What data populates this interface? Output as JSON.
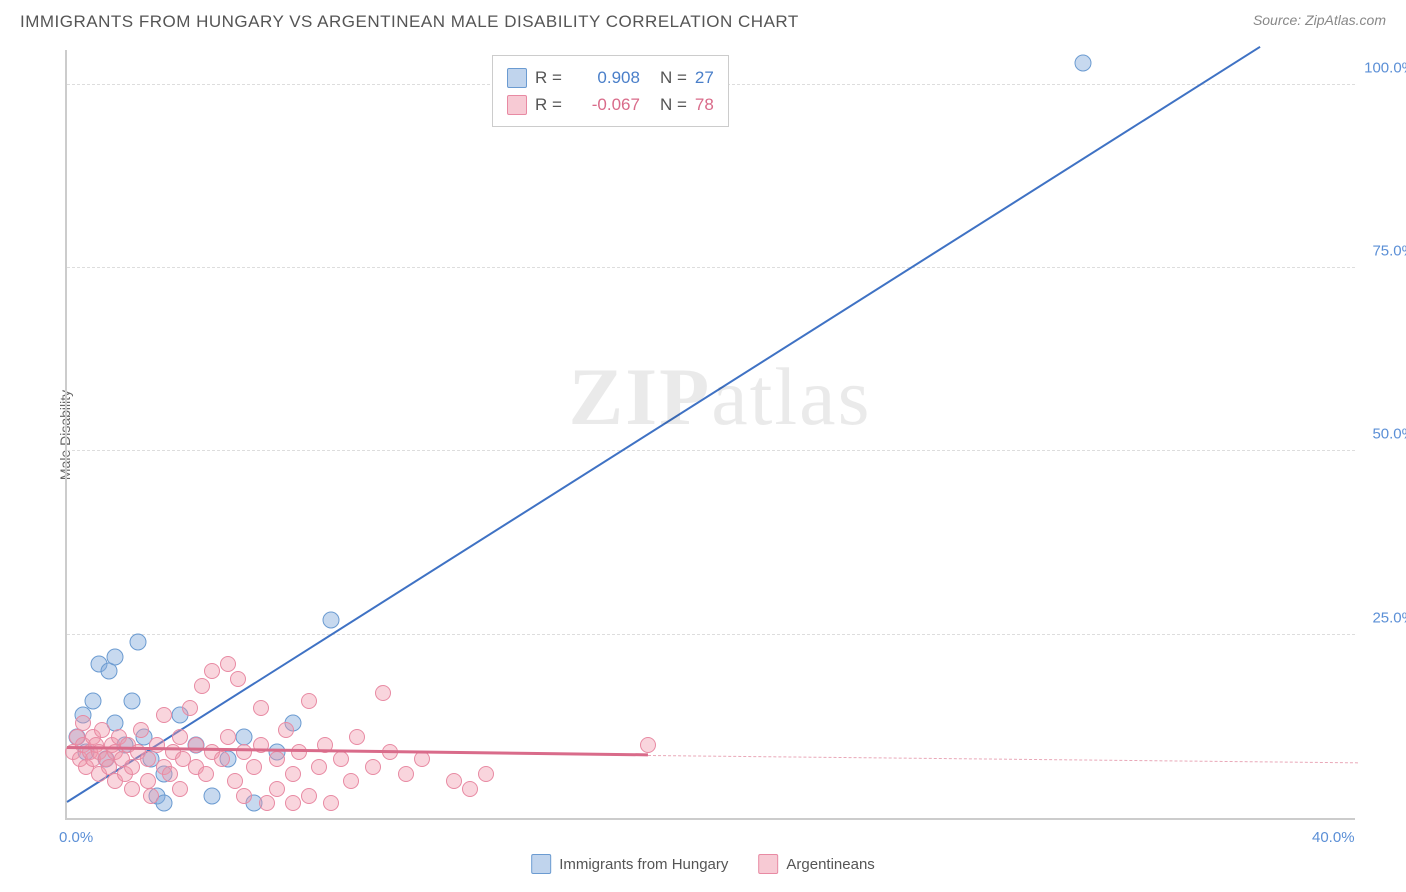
{
  "title": "IMMIGRANTS FROM HUNGARY VS ARGENTINEAN MALE DISABILITY CORRELATION CHART",
  "source_label": "Source:",
  "source_name": "ZipAtlas.com",
  "watermark_zip": "ZIP",
  "watermark_atlas": "atlas",
  "y_axis_label": "Male Disability",
  "chart": {
    "type": "scatter",
    "xlim": [
      0,
      40
    ],
    "ylim": [
      0,
      105
    ],
    "x_ticks": [
      {
        "v": 0,
        "label": "0.0%"
      },
      {
        "v": 40,
        "label": "40.0%"
      }
    ],
    "y_ticks": [
      {
        "v": 25,
        "label": "25.0%"
      },
      {
        "v": 50,
        "label": "50.0%"
      },
      {
        "v": 75,
        "label": "75.0%"
      },
      {
        "v": 100,
        "label": "100.0%"
      }
    ],
    "grid_color": "#dddddd",
    "background_color": "#ffffff",
    "series": [
      {
        "name": "Immigrants from Hungary",
        "color_fill": "rgba(130,170,220,0.45)",
        "color_stroke": "#6b9bd1",
        "marker_size": 17,
        "R": "0.908",
        "N": "27",
        "trend": {
          "x1": 0,
          "y1": 2,
          "x2": 37,
          "y2": 105,
          "color": "#3f72c4",
          "width": 2,
          "dash": false
        },
        "points": [
          {
            "x": 0.3,
            "y": 11
          },
          {
            "x": 0.5,
            "y": 14
          },
          {
            "x": 0.6,
            "y": 9
          },
          {
            "x": 0.8,
            "y": 16
          },
          {
            "x": 1.0,
            "y": 21
          },
          {
            "x": 1.2,
            "y": 8
          },
          {
            "x": 1.3,
            "y": 20
          },
          {
            "x": 1.5,
            "y": 13
          },
          {
            "x": 1.5,
            "y": 22
          },
          {
            "x": 1.8,
            "y": 10
          },
          {
            "x": 2.0,
            "y": 16
          },
          {
            "x": 2.2,
            "y": 24
          },
          {
            "x": 2.4,
            "y": 11
          },
          {
            "x": 2.6,
            "y": 8
          },
          {
            "x": 2.8,
            "y": 3
          },
          {
            "x": 3.0,
            "y": 6
          },
          {
            "x": 3.0,
            "y": 2
          },
          {
            "x": 3.5,
            "y": 14
          },
          {
            "x": 4.0,
            "y": 10
          },
          {
            "x": 4.5,
            "y": 3
          },
          {
            "x": 5.0,
            "y": 8
          },
          {
            "x": 5.5,
            "y": 11
          },
          {
            "x": 5.8,
            "y": 2
          },
          {
            "x": 6.5,
            "y": 9
          },
          {
            "x": 7.0,
            "y": 13
          },
          {
            "x": 8.2,
            "y": 27
          },
          {
            "x": 31.5,
            "y": 103
          }
        ]
      },
      {
        "name": "Argentineans",
        "color_fill": "rgba(240,150,170,0.4)",
        "color_stroke": "#e88aa3",
        "marker_size": 16,
        "R": "-0.067",
        "N": "78",
        "trend": {
          "x1": 0,
          "y1": 9.5,
          "x2": 18,
          "y2": 8.5,
          "color": "#d96b8a",
          "width": 2.5,
          "dash": false
        },
        "trend_ext": {
          "x1": 18,
          "y1": 8.5,
          "x2": 40,
          "y2": 7.5,
          "color": "#e9a8b8",
          "width": 1.5,
          "dash": true
        },
        "points": [
          {
            "x": 0.2,
            "y": 9
          },
          {
            "x": 0.3,
            "y": 11
          },
          {
            "x": 0.4,
            "y": 8
          },
          {
            "x": 0.5,
            "y": 10
          },
          {
            "x": 0.5,
            "y": 13
          },
          {
            "x": 0.6,
            "y": 7
          },
          {
            "x": 0.7,
            "y": 9
          },
          {
            "x": 0.8,
            "y": 11
          },
          {
            "x": 0.8,
            "y": 8
          },
          {
            "x": 0.9,
            "y": 10
          },
          {
            "x": 1.0,
            "y": 6
          },
          {
            "x": 1.0,
            "y": 9
          },
          {
            "x": 1.1,
            "y": 12
          },
          {
            "x": 1.2,
            "y": 8
          },
          {
            "x": 1.3,
            "y": 7
          },
          {
            "x": 1.4,
            "y": 10
          },
          {
            "x": 1.5,
            "y": 5
          },
          {
            "x": 1.5,
            "y": 9
          },
          {
            "x": 1.6,
            "y": 11
          },
          {
            "x": 1.7,
            "y": 8
          },
          {
            "x": 1.8,
            "y": 6
          },
          {
            "x": 1.9,
            "y": 10
          },
          {
            "x": 2.0,
            "y": 7
          },
          {
            "x": 2.0,
            "y": 4
          },
          {
            "x": 2.2,
            "y": 9
          },
          {
            "x": 2.3,
            "y": 12
          },
          {
            "x": 2.5,
            "y": 8
          },
          {
            "x": 2.5,
            "y": 5
          },
          {
            "x": 2.6,
            "y": 3
          },
          {
            "x": 2.8,
            "y": 10
          },
          {
            "x": 3.0,
            "y": 7
          },
          {
            "x": 3.0,
            "y": 14
          },
          {
            "x": 3.2,
            "y": 6
          },
          {
            "x": 3.3,
            "y": 9
          },
          {
            "x": 3.5,
            "y": 11
          },
          {
            "x": 3.5,
            "y": 4
          },
          {
            "x": 3.6,
            "y": 8
          },
          {
            "x": 3.8,
            "y": 15
          },
          {
            "x": 4.0,
            "y": 7
          },
          {
            "x": 4.0,
            "y": 10
          },
          {
            "x": 4.2,
            "y": 18
          },
          {
            "x": 4.3,
            "y": 6
          },
          {
            "x": 4.5,
            "y": 9
          },
          {
            "x": 4.5,
            "y": 20
          },
          {
            "x": 4.8,
            "y": 8
          },
          {
            "x": 5.0,
            "y": 11
          },
          {
            "x": 5.0,
            "y": 21
          },
          {
            "x": 5.2,
            "y": 5
          },
          {
            "x": 5.3,
            "y": 19
          },
          {
            "x": 5.5,
            "y": 9
          },
          {
            "x": 5.5,
            "y": 3
          },
          {
            "x": 5.8,
            "y": 7
          },
          {
            "x": 6.0,
            "y": 10
          },
          {
            "x": 6.0,
            "y": 15
          },
          {
            "x": 6.2,
            "y": 2
          },
          {
            "x": 6.5,
            "y": 8
          },
          {
            "x": 6.5,
            "y": 4
          },
          {
            "x": 6.8,
            "y": 12
          },
          {
            "x": 7.0,
            "y": 6
          },
          {
            "x": 7.0,
            "y": 2
          },
          {
            "x": 7.2,
            "y": 9
          },
          {
            "x": 7.5,
            "y": 16
          },
          {
            "x": 7.5,
            "y": 3
          },
          {
            "x": 7.8,
            "y": 7
          },
          {
            "x": 8.0,
            "y": 10
          },
          {
            "x": 8.2,
            "y": 2
          },
          {
            "x": 8.5,
            "y": 8
          },
          {
            "x": 8.8,
            "y": 5
          },
          {
            "x": 9.0,
            "y": 11
          },
          {
            "x": 9.5,
            "y": 7
          },
          {
            "x": 9.8,
            "y": 17
          },
          {
            "x": 10.0,
            "y": 9
          },
          {
            "x": 10.5,
            "y": 6
          },
          {
            "x": 11.0,
            "y": 8
          },
          {
            "x": 12.0,
            "y": 5
          },
          {
            "x": 12.5,
            "y": 4
          },
          {
            "x": 13.0,
            "y": 6
          },
          {
            "x": 18.0,
            "y": 10
          }
        ]
      }
    ]
  },
  "legend_stats": {
    "r_label": "R =",
    "n_label": "N ="
  },
  "bottom_legend": {
    "series1": "Immigrants from Hungary",
    "series2": "Argentineans"
  }
}
